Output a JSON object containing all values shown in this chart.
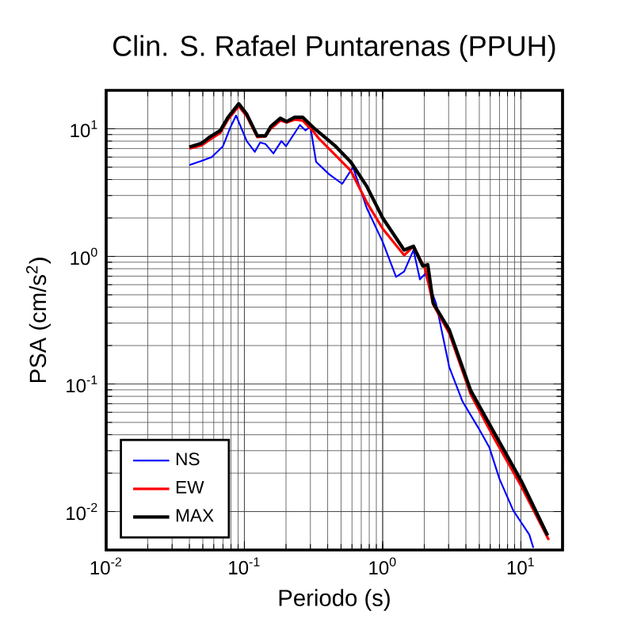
{
  "chart_data": {
    "type": "line",
    "title": "Clin. S. Rafael Puntarenas (PPUH)",
    "xlabel": "Periodo (s)",
    "ylabel": "PSA (cm/s$^{2}$)",
    "log": "xy",
    "grid": true,
    "legend": "bottom left",
    "xlim": [
      0.01,
      20
    ],
    "ylim": [
      0.005,
      20
    ],
    "xticks": [
      {
        "value": 0.01,
        "label": "10$^{-2}$"
      },
      {
        "value": 0.1,
        "label": "10$^{-1}$"
      },
      {
        "value": 1,
        "label": "10$^{0}$"
      },
      {
        "value": 10,
        "label": "10$^{1}$"
      }
    ],
    "yticks": [
      {
        "value": 0.01,
        "label": "10$^{-2}$"
      },
      {
        "value": 0.1,
        "label": "10$^{-1}$"
      },
      {
        "value": 1,
        "label": "10$^{0}$"
      },
      {
        "value": 10,
        "label": "10$^{1}$"
      }
    ],
    "series": [
      {
        "name": "NS",
        "color": "#0000ff",
        "x": [
          0.04,
          0.049,
          0.058,
          0.07,
          0.079,
          0.087,
          0.104,
          0.119,
          0.13,
          0.142,
          0.162,
          0.185,
          0.2,
          0.252,
          0.276,
          0.3,
          0.33,
          0.41,
          0.51,
          0.61,
          0.766,
          1.0,
          1.25,
          1.43,
          1.67,
          1.86,
          2.03,
          2.43,
          3.03,
          3.78,
          4.94,
          5.9,
          7.0,
          8.8,
          11.5,
          12.3
        ],
        "values": [
          5.2,
          5.6,
          6.0,
          7.3,
          10.2,
          12.7,
          8.0,
          6.6,
          7.8,
          7.6,
          6.4,
          8.0,
          7.3,
          10.7,
          9.7,
          10.4,
          5.5,
          4.4,
          3.7,
          5.0,
          2.4,
          1.3,
          0.69,
          0.76,
          1.12,
          0.66,
          0.73,
          0.43,
          0.136,
          0.073,
          0.045,
          0.032,
          0.018,
          0.0102,
          0.0066,
          0.0052
        ]
      },
      {
        "name": "EW",
        "color": "#ff0000",
        "x": [
          0.04,
          0.049,
          0.056,
          0.067,
          0.076,
          0.091,
          0.104,
          0.124,
          0.142,
          0.155,
          0.182,
          0.202,
          0.231,
          0.264,
          0.316,
          0.345,
          0.45,
          0.587,
          0.766,
          1.0,
          1.43,
          1.67,
          2.03,
          2.32,
          3.03,
          4.33,
          6.45,
          10.05,
          15.9
        ],
        "values": [
          7.0,
          7.4,
          8.2,
          9.3,
          11.8,
          15.0,
          12.5,
          8.6,
          8.7,
          10.0,
          11.6,
          11.2,
          11.8,
          11.6,
          9.5,
          8.4,
          6.3,
          4.7,
          2.66,
          1.65,
          1.02,
          1.2,
          0.8,
          0.42,
          0.25,
          0.083,
          0.037,
          0.0158,
          0.006
        ]
      },
      {
        "name": "MAX",
        "color": "#000000",
        "x": [
          0.04,
          0.049,
          0.056,
          0.067,
          0.076,
          0.091,
          0.104,
          0.124,
          0.142,
          0.155,
          0.182,
          0.202,
          0.231,
          0.264,
          0.316,
          0.45,
          0.587,
          0.766,
          1.0,
          1.43,
          1.67,
          1.95,
          2.12,
          2.32,
          3.03,
          4.33,
          6.45,
          10.05,
          15.6
        ],
        "values": [
          7.2,
          7.7,
          8.6,
          9.7,
          12.3,
          15.7,
          13.0,
          8.8,
          8.8,
          10.4,
          12.1,
          11.4,
          12.3,
          12.3,
          10.2,
          7.4,
          5.5,
          3.55,
          2.0,
          1.12,
          1.2,
          0.84,
          0.86,
          0.43,
          0.266,
          0.089,
          0.041,
          0.0174,
          0.0065
        ]
      }
    ]
  }
}
